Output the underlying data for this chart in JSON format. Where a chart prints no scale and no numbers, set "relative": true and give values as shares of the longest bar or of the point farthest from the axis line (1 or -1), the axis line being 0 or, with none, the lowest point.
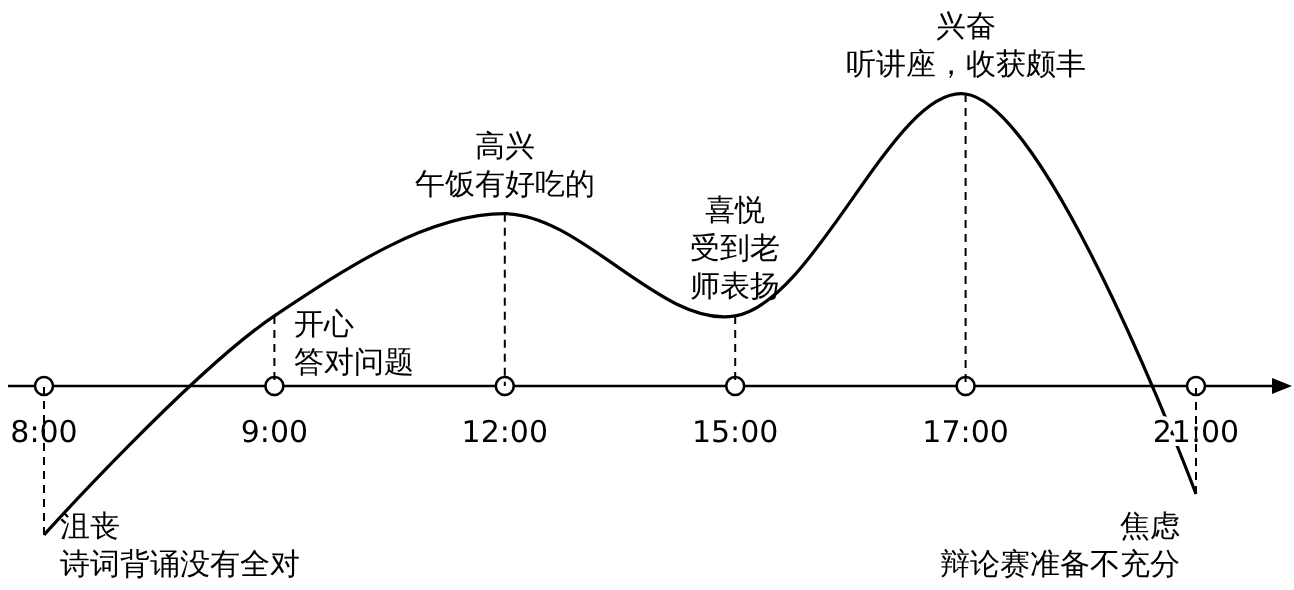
{
  "chart_data": {
    "type": "line",
    "relative": true,
    "categories": [
      "8:00",
      "9:00",
      "12:00",
      "15:00",
      "17:00",
      "21:00"
    ],
    "values": [
      -0.51,
      0.24,
      0.59,
      0.24,
      1,
      -0.37
    ],
    "color": "#000000",
    "annotations": [
      {
        "text": "沮丧",
        "x": "8:00",
        "y": -0.51
      },
      "诗词背诵没有全对",
      {
        "text": "开心",
        "x": "9:00",
        "y": 0.24
      },
      "答对问题",
      {
        "text": "高兴",
        "x": "12:00",
        "y": 0.59
      },
      "午饭有好吃的",
      {
        "text": "喜悦",
        "x": "15:00",
        "y": 0.24
      },
      "受到老",
      "师表扬",
      {
        "text": "兴奋",
        "x": "17:00",
        "y": 1
      },
      "听讲座，收获颇丰",
      {
        "text": "焦虑",
        "x": "21:00",
        "y": -0.37
      },
      "辩论赛准备不充分"
    ]
  }
}
